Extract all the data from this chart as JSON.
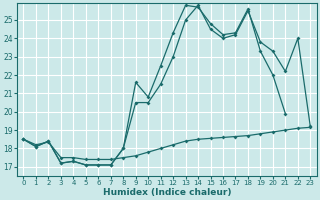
{
  "xlabel": "Humidex (Indice chaleur)",
  "xlim": [
    -0.5,
    23.5
  ],
  "ylim": [
    16.5,
    25.9
  ],
  "yticks": [
    17,
    18,
    19,
    20,
    21,
    22,
    23,
    24,
    25
  ],
  "xticks": [
    0,
    1,
    2,
    3,
    4,
    5,
    6,
    7,
    8,
    9,
    10,
    11,
    12,
    13,
    14,
    15,
    16,
    17,
    18,
    19,
    20,
    21,
    22,
    23
  ],
  "bg_color": "#cce9e9",
  "grid_color": "#ffffff",
  "line_color": "#1a6b6b",
  "line1_y": [
    18.5,
    18.1,
    18.4,
    17.2,
    17.3,
    17.1,
    17.1,
    17.1,
    18.0,
    21.6,
    20.8,
    22.5,
    24.3,
    25.8,
    25.7,
    24.8,
    24.2,
    24.3,
    25.6,
    23.3,
    22.0,
    19.9,
    null,
    null
  ],
  "line2_y": [
    18.5,
    18.1,
    18.4,
    17.2,
    17.3,
    17.1,
    17.1,
    17.1,
    18.0,
    20.5,
    20.5,
    21.5,
    23.0,
    25.0,
    25.8,
    24.5,
    24.0,
    24.2,
    25.5,
    23.8,
    23.3,
    22.2,
    24.0,
    19.2
  ],
  "line3_y": [
    18.5,
    18.2,
    18.35,
    17.5,
    17.5,
    17.4,
    17.4,
    17.4,
    17.5,
    17.6,
    17.8,
    18.0,
    18.2,
    18.4,
    18.5,
    18.55,
    18.6,
    18.65,
    18.7,
    18.8,
    18.9,
    19.0,
    19.1,
    19.15
  ]
}
